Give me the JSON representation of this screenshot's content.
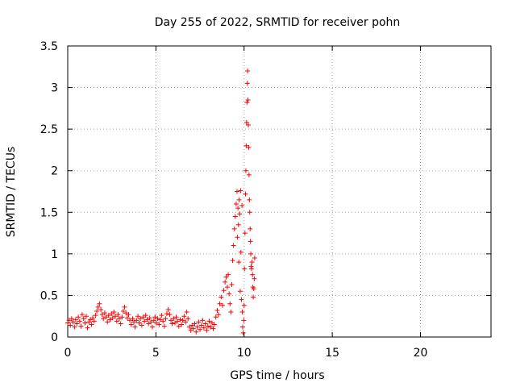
{
  "chart_data": {
    "type": "scatter",
    "title": "Day 255 of 2022, SRMTID for receiver pohn",
    "xlabel": "GPS time / hours",
    "ylabel": "SRMTID / TECUs",
    "xlim": [
      0,
      24
    ],
    "ylim": [
      0,
      3.5
    ],
    "xticks": [
      0,
      5,
      10,
      15,
      20
    ],
    "xtick_labels": [
      "0",
      "5",
      "10",
      "15",
      "20"
    ],
    "yticks": [
      0,
      0.5,
      1,
      1.5,
      2,
      2.5,
      3,
      3.5
    ],
    "ytick_labels": [
      "0",
      "0.5",
      "1",
      "1.5",
      "2",
      "2.5",
      "3",
      "3.5"
    ],
    "grid": true,
    "marker": "+",
    "color": "#ff0000",
    "series": [
      {
        "name": "SRMTID",
        "points": [
          [
            0.0,
            0.17
          ],
          [
            0.08,
            0.2
          ],
          [
            0.15,
            0.14
          ],
          [
            0.22,
            0.22
          ],
          [
            0.3,
            0.18
          ],
          [
            0.38,
            0.12
          ],
          [
            0.45,
            0.21
          ],
          [
            0.52,
            0.16
          ],
          [
            0.6,
            0.24
          ],
          [
            0.68,
            0.19
          ],
          [
            0.75,
            0.13
          ],
          [
            0.82,
            0.27
          ],
          [
            0.9,
            0.22
          ],
          [
            0.98,
            0.17
          ],
          [
            1.05,
            0.25
          ],
          [
            1.12,
            0.11
          ],
          [
            1.2,
            0.18
          ],
          [
            1.28,
            0.21
          ],
          [
            1.35,
            0.15
          ],
          [
            1.42,
            0.23
          ],
          [
            1.5,
            0.19
          ],
          [
            1.58,
            0.26
          ],
          [
            1.65,
            0.31
          ],
          [
            1.72,
            0.36
          ],
          [
            1.8,
            0.4
          ],
          [
            1.88,
            0.33
          ],
          [
            1.95,
            0.27
          ],
          [
            2.02,
            0.22
          ],
          [
            2.1,
            0.29
          ],
          [
            2.18,
            0.24
          ],
          [
            2.25,
            0.18
          ],
          [
            2.32,
            0.26
          ],
          [
            2.4,
            0.21
          ],
          [
            2.48,
            0.28
          ],
          [
            2.55,
            0.23
          ],
          [
            2.62,
            0.3
          ],
          [
            2.7,
            0.25
          ],
          [
            2.78,
            0.19
          ],
          [
            2.85,
            0.27
          ],
          [
            2.92,
            0.22
          ],
          [
            3.0,
            0.16
          ],
          [
            3.08,
            0.24
          ],
          [
            3.15,
            0.31
          ],
          [
            3.22,
            0.36
          ],
          [
            3.3,
            0.29
          ],
          [
            3.38,
            0.23
          ],
          [
            3.45,
            0.27
          ],
          [
            3.52,
            0.2
          ],
          [
            3.6,
            0.15
          ],
          [
            3.68,
            0.22
          ],
          [
            3.75,
            0.18
          ],
          [
            3.82,
            0.12
          ],
          [
            3.9,
            0.2
          ],
          [
            3.98,
            0.25
          ],
          [
            4.05,
            0.17
          ],
          [
            4.12,
            0.22
          ],
          [
            4.2,
            0.14
          ],
          [
            4.28,
            0.24
          ],
          [
            4.35,
            0.19
          ],
          [
            4.42,
            0.26
          ],
          [
            4.5,
            0.21
          ],
          [
            4.58,
            0.16
          ],
          [
            4.65,
            0.23
          ],
          [
            4.72,
            0.18
          ],
          [
            4.8,
            0.12
          ],
          [
            4.88,
            0.2
          ],
          [
            4.95,
            0.24
          ],
          [
            5.02,
            0.17
          ],
          [
            5.1,
            0.22
          ],
          [
            5.18,
            0.15
          ],
          [
            5.25,
            0.21
          ],
          [
            5.32,
            0.26
          ],
          [
            5.4,
            0.19
          ],
          [
            5.48,
            0.13
          ],
          [
            5.55,
            0.22
          ],
          [
            5.62,
            0.28
          ],
          [
            5.7,
            0.33
          ],
          [
            5.78,
            0.27
          ],
          [
            5.85,
            0.2
          ],
          [
            5.92,
            0.16
          ],
          [
            6.0,
            0.22
          ],
          [
            6.08,
            0.17
          ],
          [
            6.15,
            0.24
          ],
          [
            6.22,
            0.19
          ],
          [
            6.3,
            0.13
          ],
          [
            6.38,
            0.21
          ],
          [
            6.45,
            0.15
          ],
          [
            6.52,
            0.2
          ],
          [
            6.6,
            0.25
          ],
          [
            6.68,
            0.18
          ],
          [
            6.75,
            0.3
          ],
          [
            6.82,
            0.22
          ],
          [
            6.9,
            0.12
          ],
          [
            6.98,
            0.08
          ],
          [
            7.05,
            0.14
          ],
          [
            7.12,
            0.1
          ],
          [
            7.2,
            0.16
          ],
          [
            7.28,
            0.06
          ],
          [
            7.35,
            0.12
          ],
          [
            7.42,
            0.18
          ],
          [
            7.5,
            0.09
          ],
          [
            7.58,
            0.14
          ],
          [
            7.65,
            0.2
          ],
          [
            7.72,
            0.11
          ],
          [
            7.8,
            0.16
          ],
          [
            7.88,
            0.08
          ],
          [
            7.95,
            0.13
          ],
          [
            8.02,
            0.19
          ],
          [
            8.1,
            0.12
          ],
          [
            8.18,
            0.17
          ],
          [
            8.25,
            0.1
          ],
          [
            8.32,
            0.15
          ],
          [
            8.4,
            0.24
          ],
          [
            8.48,
            0.32
          ],
          [
            8.55,
            0.27
          ],
          [
            8.62,
            0.4
          ],
          [
            8.7,
            0.48
          ],
          [
            8.78,
            0.38
          ],
          [
            8.85,
            0.56
          ],
          [
            8.92,
            0.66
          ],
          [
            8.98,
            0.72
          ],
          [
            9.05,
            0.6
          ],
          [
            9.1,
            0.75
          ],
          [
            9.15,
            0.52
          ],
          [
            9.2,
            0.4
          ],
          [
            9.25,
            0.3
          ],
          [
            9.3,
            0.63
          ],
          [
            9.35,
            0.92
          ],
          [
            9.4,
            1.1
          ],
          [
            9.45,
            1.3
          ],
          [
            9.5,
            1.45
          ],
          [
            9.55,
            1.6
          ],
          [
            9.6,
            1.75
          ],
          [
            9.62,
            1.2
          ],
          [
            9.65,
            1.55
          ],
          [
            9.68,
            1.35
          ],
          [
            9.7,
            0.9
          ],
          [
            9.72,
            1.65
          ],
          [
            9.75,
            1.48
          ],
          [
            9.78,
            0.55
          ],
          [
            9.8,
            1.76
          ],
          [
            9.82,
            1.02
          ],
          [
            9.85,
            0.45
          ],
          [
            9.88,
            1.58
          ],
          [
            9.9,
            0.3
          ],
          [
            9.92,
            0.12
          ],
          [
            9.95,
            0.05
          ],
          [
            9.98,
            0.2
          ],
          [
            10.0,
            0.38
          ],
          [
            10.02,
            0.82
          ],
          [
            10.05,
            1.25
          ],
          [
            10.08,
            1.72
          ],
          [
            10.1,
            2.0
          ],
          [
            10.12,
            2.3
          ],
          [
            10.14,
            2.58
          ],
          [
            10.16,
            2.82
          ],
          [
            10.18,
            3.05
          ],
          [
            10.2,
            3.2
          ],
          [
            10.22,
            2.85
          ],
          [
            10.24,
            2.55
          ],
          [
            10.26,
            2.28
          ],
          [
            10.28,
            1.95
          ],
          [
            10.3,
            1.65
          ],
          [
            10.32,
            1.5
          ],
          [
            10.34,
            1.3
          ],
          [
            10.36,
            1.15
          ],
          [
            10.38,
            1.0
          ],
          [
            10.4,
            0.85
          ],
          [
            10.42,
            0.82
          ],
          [
            10.45,
            0.9
          ],
          [
            10.48,
            0.75
          ],
          [
            10.5,
            0.6
          ],
          [
            10.52,
            0.48
          ],
          [
            10.55,
            0.58
          ],
          [
            10.58,
            0.7
          ],
          [
            10.6,
            0.95
          ]
        ]
      }
    ]
  }
}
